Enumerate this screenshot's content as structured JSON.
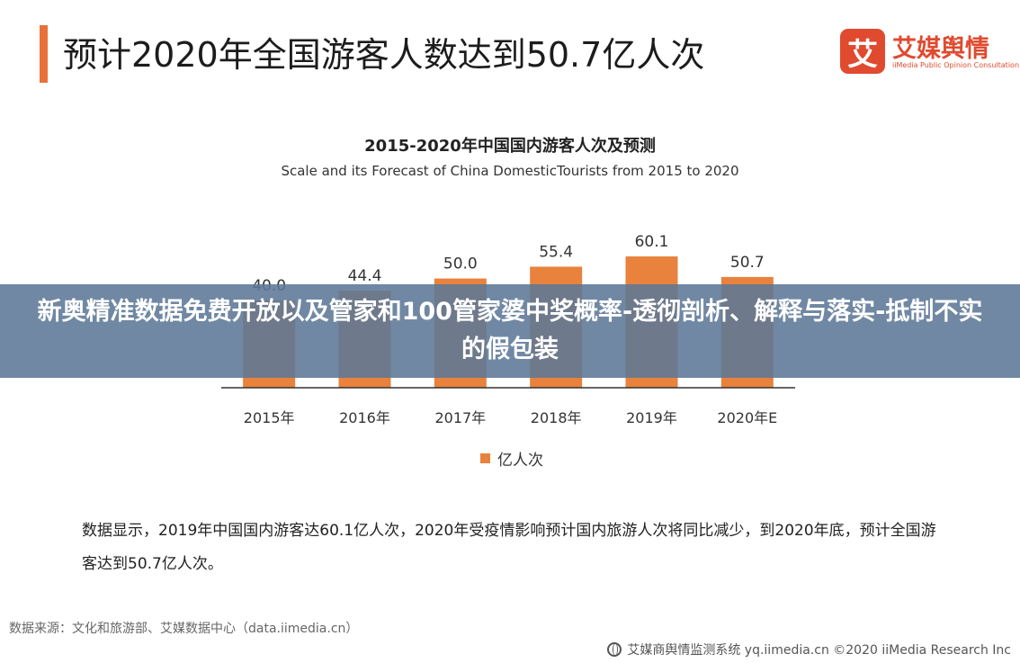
{
  "header": {
    "title": "预计2020年全国游客人数达到50.7亿人次"
  },
  "logo": {
    "mark": "艾",
    "name": "艾媒舆情",
    "tagline": "iiMedia Public Opinion Consultation"
  },
  "chart_data": {
    "type": "bar",
    "title": "2015-2020年中国国内游客人次及预测",
    "subtitle": "Scale and its Forecast of China DomesticTourists from 2015 to 2020",
    "categories": [
      "2015年",
      "2016年",
      "2017年",
      "2018年",
      "2019年",
      "2020年E"
    ],
    "series": [
      {
        "name": "亿人次",
        "values": [
          40.0,
          44.4,
          50.0,
          55.4,
          60.1,
          50.7
        ]
      }
    ],
    "value_labels": [
      "40.0",
      "44.4",
      "50.0",
      "55.4",
      "60.1",
      "50.7"
    ],
    "ylim": [
      0,
      63
    ],
    "grid": false,
    "legend_position": "bottom",
    "bar_color": "#e8823c"
  },
  "note": "数据显示，2019年中国国内游客达60.1亿人次，2020年受疫情影响预计国内旅游人次将同比减少，到2020年底，预计全国游客达到50.7亿人次。",
  "source": "数据来源：文化和旅游部、艾媒数据中心（data.iimedia.cn）",
  "footer": "艾媒商舆情监测系统 yq.iimedia.cn ©2020  iiMedia Research  Inc",
  "watermark": "新奥精准数据免费开放以及管家和100管家婆中奖概率-透彻剖析、解释与落实-抵制不实的假包装"
}
